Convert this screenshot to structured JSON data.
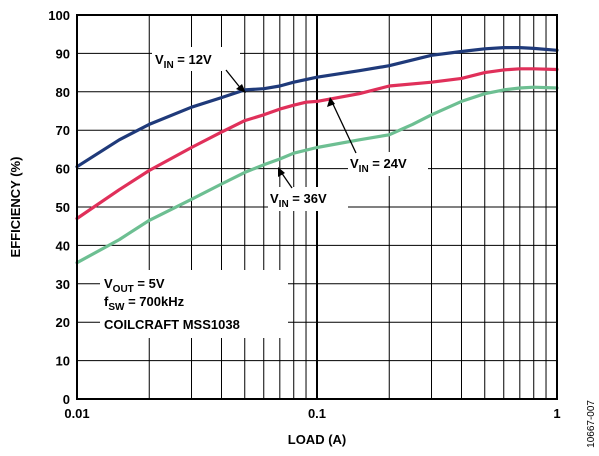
{
  "chart_data": {
    "type": "line",
    "xlabel": "LOAD (A)",
    "ylabel": "EFFICIENCY (%)",
    "xscale": "log",
    "xlim": [
      0.01,
      1
    ],
    "ylim": [
      0,
      100
    ],
    "grid": true,
    "x_tick_labels": [
      "0.01",
      "0.1",
      "1"
    ],
    "y_tick_labels": [
      "0",
      "10",
      "20",
      "30",
      "40",
      "50",
      "60",
      "70",
      "80",
      "90",
      "100"
    ],
    "series": [
      {
        "name": "V_IN = 12V",
        "color": "#1f3a7a",
        "x": [
          0.01,
          0.015,
          0.02,
          0.03,
          0.04,
          0.05,
          0.06,
          0.07,
          0.08,
          0.1,
          0.15,
          0.2,
          0.3,
          0.4,
          0.5,
          0.6,
          0.7,
          0.8,
          1.0
        ],
        "y": [
          60.5,
          67.5,
          71.5,
          76,
          78.5,
          80.5,
          80.8,
          81.5,
          82.5,
          83.8,
          85.5,
          86.8,
          89.5,
          90.5,
          91.2,
          91.5,
          91.5,
          91.3,
          90.8
        ]
      },
      {
        "name": "V_IN = 24V",
        "color": "#e0305a",
        "x": [
          0.01,
          0.015,
          0.02,
          0.03,
          0.04,
          0.05,
          0.06,
          0.07,
          0.08,
          0.09,
          0.1,
          0.15,
          0.2,
          0.3,
          0.4,
          0.5,
          0.6,
          0.7,
          0.8,
          1.0
        ],
        "y": [
          47,
          54.5,
          59.5,
          65.5,
          69.5,
          72.5,
          74,
          75.5,
          76.5,
          77.3,
          77.5,
          79.5,
          81.5,
          82.5,
          83.5,
          85,
          85.7,
          86,
          86,
          85.8
        ]
      },
      {
        "name": "V_IN = 36V",
        "color": "#6dbf92",
        "x": [
          0.01,
          0.015,
          0.02,
          0.03,
          0.04,
          0.05,
          0.06,
          0.07,
          0.08,
          0.1,
          0.15,
          0.2,
          0.25,
          0.3,
          0.4,
          0.5,
          0.6,
          0.7,
          0.8,
          1.0
        ],
        "y": [
          35.5,
          41.5,
          46.5,
          52,
          56,
          59,
          61,
          62.5,
          64,
          65.5,
          67.5,
          68.8,
          71.5,
          74,
          77.5,
          79.5,
          80.5,
          81,
          81.2,
          81
        ]
      }
    ],
    "annotations": [
      {
        "main": "V",
        "sub": "IN",
        "rest": " = 12V"
      },
      {
        "main": "V",
        "sub": "IN",
        "rest": " = 24V"
      },
      {
        "main": "V",
        "sub": "IN",
        "rest": " = 36V"
      },
      {
        "main": "V",
        "sub": "OUT",
        "rest": " = 5V"
      },
      {
        "main": "f",
        "sub": "SW",
        "rest": " = 700kHz"
      },
      {
        "main": "COILCRAFT MSS1038",
        "sub": "",
        "rest": ""
      }
    ]
  },
  "figure_id": "10667-007"
}
